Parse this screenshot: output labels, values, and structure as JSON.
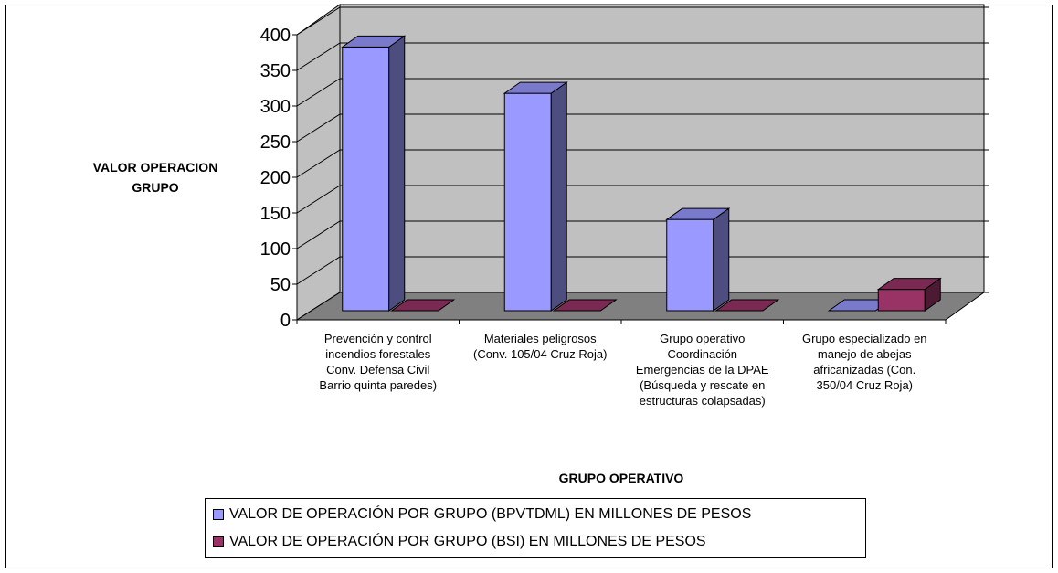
{
  "chart_data": {
    "type": "bar3d",
    "y_axis_label": "VALOR OPERACION\nGRUPO",
    "x_axis_label": "GRUPO OPERATIVO",
    "categories": [
      "Prevención y control\nincendios forestales\nConv. Defensa Civil\nBarrio quinta paredes)",
      "Materiales peligrosos\n(Conv. 105/04 Cruz Roja)",
      "Grupo operativo\nCoordinación\nEmergencias de la DPAE\n(Búsqueda y rescate en\nestructuras colapsadas)",
      "Grupo especializado en\nmanejo de abejas\nafricanizadas (Con.\n350/04 Cruz Roja)"
    ],
    "series": [
      {
        "name": "VALOR DE OPERACIÓN POR GRUPO (BPVTDML) EN MILLONES DE PESOS",
        "color": "#9999ff",
        "values": [
          370,
          305,
          128,
          0
        ]
      },
      {
        "name": "VALOR DE OPERACIÓN POR GRUPO (BSI) EN MILLONES DE PESOS",
        "color": "#993366",
        "values": [
          0,
          0,
          0,
          30
        ]
      }
    ],
    "ylim": [
      0,
      400
    ],
    "yticks": [
      0,
      50,
      100,
      150,
      200,
      250,
      300,
      350,
      400
    ],
    "grid": true
  }
}
